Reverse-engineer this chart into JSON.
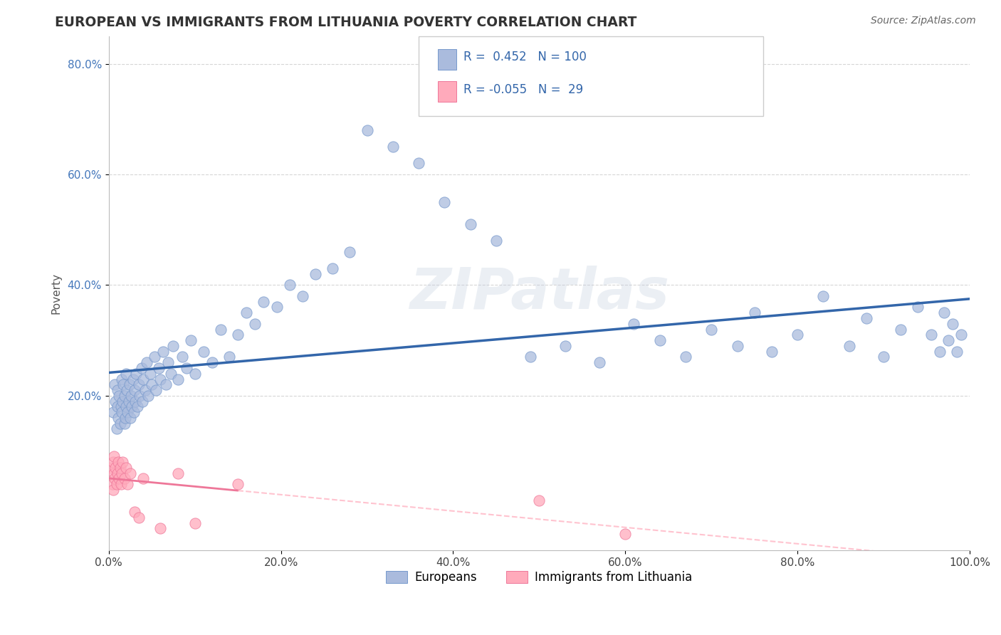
{
  "title": "EUROPEAN VS IMMIGRANTS FROM LITHUANIA POVERTY CORRELATION CHART",
  "source": "Source: ZipAtlas.com",
  "ylabel": "Poverty",
  "xlim": [
    0.0,
    1.0
  ],
  "ylim": [
    -0.08,
    0.85
  ],
  "x_tick_labels": [
    "0.0%",
    "20.0%",
    "40.0%",
    "60.0%",
    "80.0%",
    "100.0%"
  ],
  "x_tick_positions": [
    0.0,
    0.2,
    0.4,
    0.6,
    0.8,
    1.0
  ],
  "y_tick_labels": [
    "20.0%",
    "40.0%",
    "60.0%",
    "80.0%"
  ],
  "y_tick_positions": [
    0.2,
    0.4,
    0.6,
    0.8
  ],
  "legend_label_1": "Europeans",
  "legend_label_2": "Immigrants from Lithuania",
  "r1": 0.452,
  "n1": 100,
  "r2": -0.055,
  "n2": 29,
  "blue_fill": "#AABBDD",
  "blue_edge": "#7799CC",
  "pink_fill": "#FFAABB",
  "pink_edge": "#EE7799",
  "line_blue": "#3366AA",
  "line_pink": "#EE7799",
  "line_pink_dashed": "#FFAABB",
  "watermark": "ZIPatlas",
  "background_color": "#FFFFFF",
  "grid_color": "#CCCCCC",
  "title_color": "#333333",
  "source_color": "#666666",
  "tick_color_y": "#4477BB",
  "tick_color_x": "#444444",
  "seed": 1234,
  "euro_x": [
    0.005,
    0.007,
    0.008,
    0.009,
    0.01,
    0.01,
    0.011,
    0.012,
    0.013,
    0.014,
    0.015,
    0.015,
    0.016,
    0.017,
    0.018,
    0.018,
    0.019,
    0.02,
    0.02,
    0.021,
    0.022,
    0.023,
    0.024,
    0.025,
    0.026,
    0.027,
    0.028,
    0.029,
    0.03,
    0.031,
    0.032,
    0.033,
    0.035,
    0.036,
    0.038,
    0.039,
    0.04,
    0.042,
    0.044,
    0.046,
    0.048,
    0.05,
    0.053,
    0.055,
    0.058,
    0.06,
    0.063,
    0.066,
    0.069,
    0.072,
    0.075,
    0.08,
    0.085,
    0.09,
    0.095,
    0.1,
    0.11,
    0.12,
    0.13,
    0.14,
    0.15,
    0.16,
    0.17,
    0.18,
    0.195,
    0.21,
    0.225,
    0.24,
    0.26,
    0.28,
    0.3,
    0.33,
    0.36,
    0.39,
    0.42,
    0.45,
    0.49,
    0.53,
    0.57,
    0.61,
    0.64,
    0.67,
    0.7,
    0.73,
    0.75,
    0.77,
    0.8,
    0.83,
    0.86,
    0.88,
    0.9,
    0.92,
    0.94,
    0.955,
    0.965,
    0.97,
    0.975,
    0.98,
    0.985,
    0.99
  ],
  "euro_y": [
    0.17,
    0.22,
    0.19,
    0.14,
    0.18,
    0.21,
    0.16,
    0.2,
    0.15,
    0.18,
    0.23,
    0.17,
    0.19,
    0.22,
    0.15,
    0.2,
    0.16,
    0.24,
    0.18,
    0.21,
    0.17,
    0.19,
    0.22,
    0.16,
    0.2,
    0.18,
    0.23,
    0.17,
    0.21,
    0.19,
    0.24,
    0.18,
    0.22,
    0.2,
    0.25,
    0.19,
    0.23,
    0.21,
    0.26,
    0.2,
    0.24,
    0.22,
    0.27,
    0.21,
    0.25,
    0.23,
    0.28,
    0.22,
    0.26,
    0.24,
    0.29,
    0.23,
    0.27,
    0.25,
    0.3,
    0.24,
    0.28,
    0.26,
    0.32,
    0.27,
    0.31,
    0.35,
    0.33,
    0.37,
    0.36,
    0.4,
    0.38,
    0.42,
    0.43,
    0.46,
    0.68,
    0.65,
    0.62,
    0.55,
    0.51,
    0.48,
    0.27,
    0.29,
    0.26,
    0.33,
    0.3,
    0.27,
    0.32,
    0.29,
    0.35,
    0.28,
    0.31,
    0.38,
    0.29,
    0.34,
    0.27,
    0.32,
    0.36,
    0.31,
    0.28,
    0.35,
    0.3,
    0.33,
    0.28,
    0.31
  ],
  "lith_x": [
    0.003,
    0.004,
    0.005,
    0.005,
    0.006,
    0.006,
    0.007,
    0.008,
    0.009,
    0.01,
    0.011,
    0.012,
    0.013,
    0.014,
    0.015,
    0.016,
    0.018,
    0.02,
    0.022,
    0.025,
    0.03,
    0.035,
    0.04,
    0.06,
    0.08,
    0.1,
    0.15,
    0.5,
    0.6
  ],
  "lith_y": [
    0.07,
    0.04,
    0.08,
    0.03,
    0.06,
    0.09,
    0.05,
    0.07,
    0.04,
    0.06,
    0.08,
    0.05,
    0.07,
    0.04,
    0.06,
    0.08,
    0.05,
    0.07,
    0.04,
    0.06,
    -0.01,
    -0.02,
    0.05,
    -0.04,
    0.06,
    -0.03,
    0.04,
    0.01,
    -0.05
  ]
}
